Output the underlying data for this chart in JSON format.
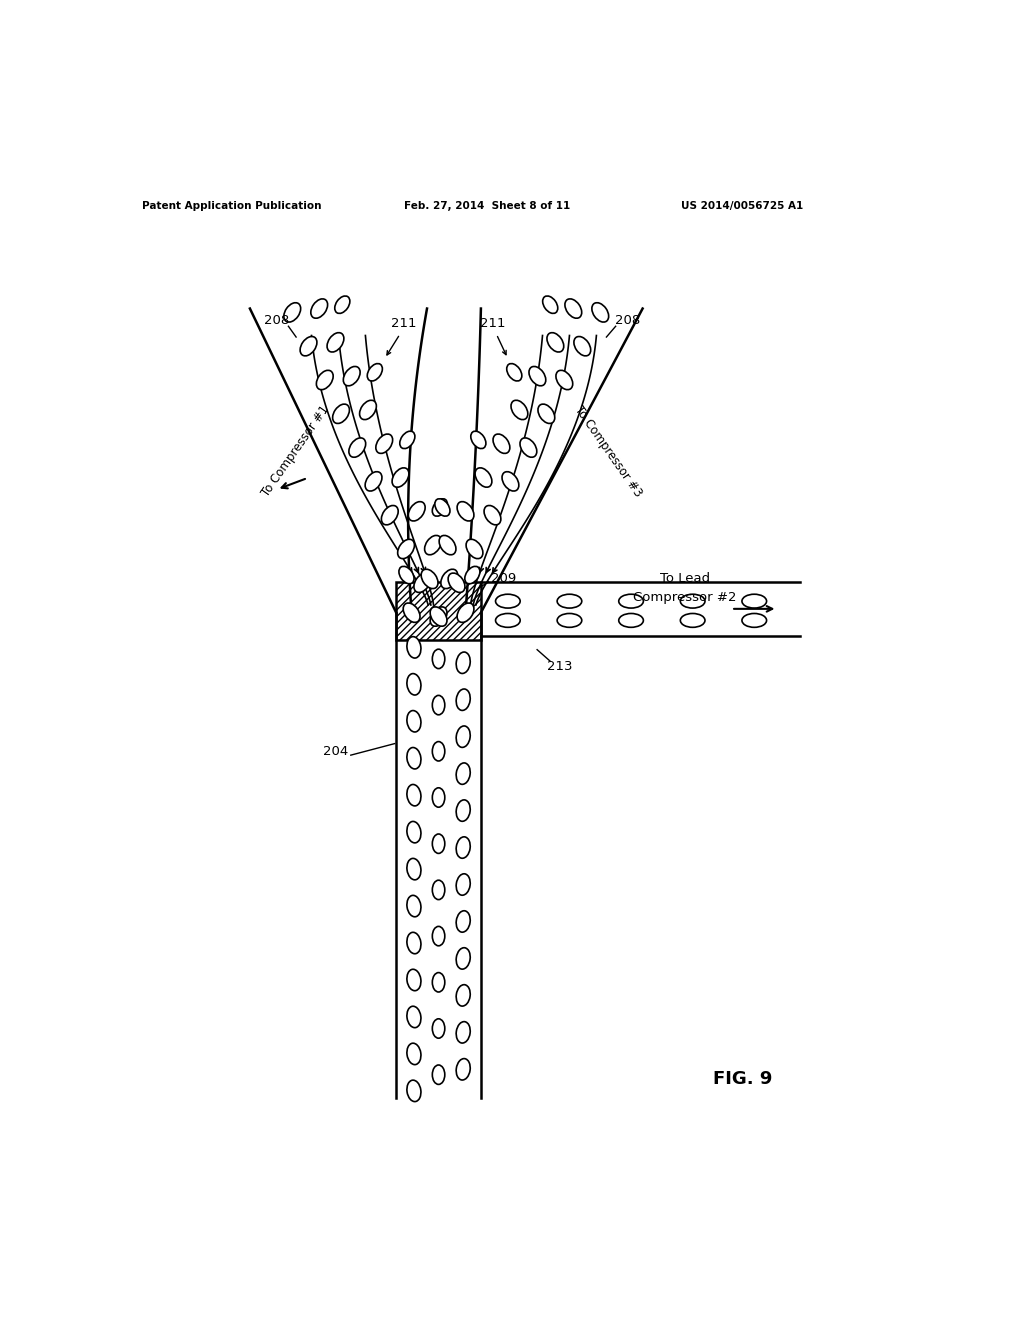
{
  "bg_color": "#ffffff",
  "header_text": "Patent Application Publication",
  "header_date": "Feb. 27, 2014  Sheet 8 of 11",
  "header_patent": "US 2014/0056725 A1",
  "fig_label": "FIG. 9",
  "label_208_left": "208",
  "label_208_right": "208",
  "label_211_left": "211",
  "label_211_right": "211",
  "label_204": "204",
  "label_209": "209",
  "label_213": "213",
  "label_comp1": "To Compressor #1",
  "label_comp3": "To Compressor #3",
  "label_lead_line1": "To Lead",
  "label_lead_line2": "Compressor #2"
}
